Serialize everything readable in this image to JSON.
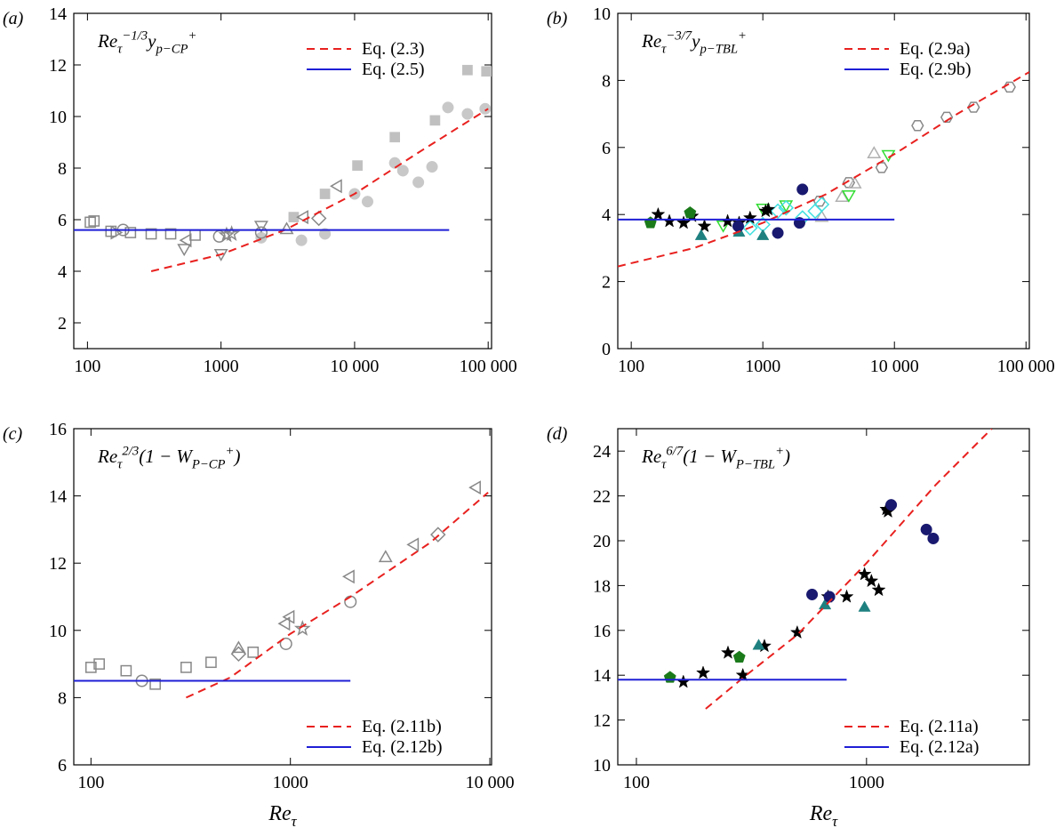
{
  "chart_data": [
    {
      "type": "scatter",
      "label": "(a)",
      "xscale": "log",
      "annotation": [
        {
          "text": "Re"
        },
        {
          "text": "τ",
          "shift": "sub"
        },
        {
          "text": "−1/3",
          "shift": "sup"
        },
        {
          "text": "y"
        },
        {
          "text": "p−CP",
          "shift": "sub"
        },
        {
          "text": "+",
          "shift": "sup"
        }
      ],
      "xlim": [
        79,
        106000
      ],
      "ylim": [
        1,
        14
      ],
      "xticks": [
        100,
        1000,
        {
          "value": 10000,
          "label": "10 000"
        },
        {
          "value": 100000,
          "label": "100 000"
        }
      ],
      "yticks": [
        2,
        4,
        6,
        8,
        10,
        12,
        14
      ],
      "legend": "upper right",
      "series": [
        {
          "marker": "circle",
          "filled": true,
          "color": "#c8c8c8",
          "x": [
            2000,
            4000,
            6000,
            10000,
            12500,
            20000,
            23000,
            30000,
            38000,
            50000,
            70000,
            95000
          ],
          "values": [
            5.3,
            5.2,
            5.45,
            7.0,
            6.7,
            8.2,
            7.9,
            7.45,
            8.05,
            10.35,
            10.1,
            10.3
          ]
        },
        {
          "marker": "square",
          "filled": true,
          "color": "#c0c0c0",
          "x": [
            3500,
            6000,
            10500,
            20000,
            40000,
            70000,
            97000
          ],
          "values": [
            6.1,
            7.0,
            8.1,
            9.2,
            9.85,
            11.8,
            11.75
          ]
        },
        {
          "marker": "square",
          "filled": false,
          "color": "#888888",
          "x": [
            105,
            112,
            150,
            210,
            300,
            420,
            640
          ],
          "values": [
            5.9,
            5.95,
            5.55,
            5.5,
            5.45,
            5.45,
            5.4
          ]
        },
        {
          "marker": "circle",
          "filled": false,
          "color": "#888888",
          "x": [
            185,
            970,
            2000
          ],
          "values": [
            5.6,
            5.35,
            5.5
          ]
        },
        {
          "marker": "triangle-right",
          "filled": false,
          "color": "#888888",
          "x": [
            160
          ],
          "values": [
            5.5
          ]
        },
        {
          "marker": "triangle-down",
          "filled": false,
          "color": "#888888",
          "x": [
            530,
            1000,
            2000
          ],
          "values": [
            4.9,
            4.7,
            5.8
          ]
        },
        {
          "marker": "triangle-left",
          "filled": false,
          "color": "#888888",
          "x": [
            560,
            4200,
            7500
          ],
          "values": [
            5.2,
            6.1,
            7.3
          ]
        },
        {
          "marker": "star",
          "filled": false,
          "color": "#888888",
          "x": [
            1100,
            1200
          ],
          "values": [
            5.4,
            5.45
          ]
        },
        {
          "marker": "triangle-up",
          "filled": false,
          "color": "#888888",
          "x": [
            3100
          ],
          "values": [
            5.6
          ]
        },
        {
          "marker": "diamond",
          "filled": false,
          "color": "#888888",
          "x": [
            5400
          ],
          "values": [
            6.05
          ]
        },
        {
          "name": "Eq. (2.3)",
          "color": "#e8211f",
          "dash": true,
          "x": [
            300,
            1000,
            3000,
            10000,
            30000,
            100000
          ],
          "values": [
            4.0,
            4.65,
            5.6,
            7.0,
            8.6,
            10.3
          ]
        },
        {
          "name": "Eq. (2.5)",
          "color": "#1f1fd6",
          "dash": false,
          "x": [
            79,
            51000
          ],
          "values": [
            5.6,
            5.6
          ]
        }
      ]
    },
    {
      "type": "scatter",
      "label": "(b)",
      "xscale": "log",
      "annotation": [
        {
          "text": "Re"
        },
        {
          "text": "τ",
          "shift": "sub"
        },
        {
          "text": "−3/7",
          "shift": "sup"
        },
        {
          "text": "y"
        },
        {
          "text": "p−TBL",
          "shift": "sub"
        },
        {
          "text": "+",
          "shift": "sup"
        }
      ],
      "xlim": [
        79,
        106000
      ],
      "ylim": [
        0,
        10
      ],
      "xticks": [
        100,
        1000,
        {
          "value": 10000,
          "label": "10 000"
        },
        {
          "value": 100000,
          "label": "100 000"
        }
      ],
      "yticks": [
        0,
        2,
        4,
        6,
        8,
        10
      ],
      "legend": "upper right",
      "series": [
        {
          "marker": "hexagon",
          "filled": false,
          "color": "#888888",
          "x": [
            2700,
            4500,
            8000,
            15000,
            25000,
            40000,
            75000
          ],
          "values": [
            4.4,
            4.95,
            5.4,
            6.65,
            6.9,
            7.2,
            7.8
          ]
        },
        {
          "marker": "triangle-up",
          "filled": false,
          "color": "#b0b0b0",
          "x": [
            2800,
            4000,
            5000,
            7000
          ],
          "values": [
            3.9,
            4.5,
            4.9,
            5.8
          ]
        },
        {
          "marker": "triangle-down",
          "filled": false,
          "color": "#33dd33",
          "x": [
            500,
            1000,
            1500,
            4500,
            9000
          ],
          "values": [
            3.7,
            4.2,
            4.3,
            4.6,
            5.8
          ]
        },
        {
          "marker": "diamond",
          "filled": false,
          "color": "#40e0e0",
          "x": [
            800,
            1000,
            1300,
            1500,
            2000,
            2500,
            2800
          ],
          "values": [
            3.6,
            3.7,
            4.1,
            4.2,
            3.9,
            4.1,
            4.3
          ]
        },
        {
          "marker": "star",
          "filled": true,
          "color": "#000000",
          "x": [
            160,
            195,
            250,
            290,
            360,
            540,
            660,
            800,
            1050,
            1100
          ],
          "values": [
            4.0,
            3.8,
            3.75,
            3.95,
            3.65,
            3.8,
            3.75,
            3.9,
            4.1,
            4.15
          ]
        },
        {
          "marker": "pentagon",
          "filled": true,
          "color": "#1a7a1a",
          "x": [
            140,
            280
          ],
          "values": [
            3.75,
            4.05
          ]
        },
        {
          "marker": "triangle-up",
          "filled": true,
          "color": "#1f8080",
          "x": [
            340,
            660,
            1000
          ],
          "values": [
            3.35,
            3.45,
            3.35
          ]
        },
        {
          "marker": "circle",
          "filled": true,
          "color": "#191970",
          "x": [
            650,
            1300,
            1900,
            2000
          ],
          "values": [
            3.65,
            3.45,
            3.75,
            4.75
          ]
        },
        {
          "name": "Eq. (2.9a)",
          "color": "#e8211f",
          "dash": true,
          "x": [
            79,
            300,
            1000,
            3000,
            10000,
            30000,
            106000
          ],
          "values": [
            2.45,
            3.0,
            3.75,
            4.6,
            5.8,
            7.0,
            8.25
          ]
        },
        {
          "name": "Eq. (2.9b)",
          "color": "#1f1fd6",
          "dash": false,
          "x": [
            79,
            10000
          ],
          "values": [
            3.85,
            3.85
          ]
        }
      ]
    },
    {
      "type": "scatter",
      "label": "(c)",
      "xscale": "log",
      "annotation": [
        {
          "text": "Re"
        },
        {
          "text": "τ",
          "shift": "sub"
        },
        {
          "text": "2/3",
          "shift": "sup"
        },
        {
          "text": "(1 − W"
        },
        {
          "text": "P−CP",
          "shift": "sub"
        },
        {
          "text": "+",
          "shift": "sup"
        },
        {
          "text": ")"
        }
      ],
      "xlabel": [
        {
          "text": "Re"
        },
        {
          "text": "τ",
          "shift": "sub"
        }
      ],
      "xlim": [
        82,
        10200
      ],
      "ylim": [
        6,
        16
      ],
      "xticks": [
        100,
        1000,
        {
          "value": 10000,
          "label": "10 000"
        }
      ],
      "yticks": [
        6,
        8,
        10,
        12,
        14,
        16
      ],
      "legend": "lower right",
      "series": [
        {
          "marker": "square",
          "filled": false,
          "color": "#888888",
          "x": [
            100,
            110,
            150,
            210,
            300,
            400,
            650
          ],
          "values": [
            8.9,
            9.0,
            8.8,
            8.4,
            8.9,
            9.05,
            9.35
          ]
        },
        {
          "marker": "circle",
          "filled": false,
          "color": "#888888",
          "x": [
            180,
            950,
            2000
          ],
          "values": [
            8.5,
            9.6,
            10.85
          ]
        },
        {
          "marker": "triangle-up",
          "filled": false,
          "color": "#888888",
          "x": [
            550,
            3000
          ],
          "values": [
            9.45,
            12.15
          ]
        },
        {
          "marker": "diamond",
          "filled": false,
          "color": "#888888",
          "x": [
            550,
            5500
          ],
          "values": [
            9.3,
            12.85
          ]
        },
        {
          "marker": "triangle-left",
          "filled": false,
          "color": "#888888",
          "x": [
            950,
            1000,
            2000,
            4200,
            8600
          ],
          "values": [
            10.2,
            10.4,
            11.6,
            12.55,
            14.25
          ]
        },
        {
          "marker": "star",
          "filled": false,
          "color": "#888888",
          "x": [
            1150
          ],
          "values": [
            10.05
          ]
        },
        {
          "name": "Eq. (2.11b)",
          "color": "#e8211f",
          "dash": true,
          "x": [
            300,
            500,
            1000,
            2000,
            5000,
            9800
          ],
          "values": [
            8.0,
            8.6,
            9.9,
            11.0,
            12.6,
            14.1
          ]
        },
        {
          "name": "Eq. (2.12b)",
          "color": "#1f1fd6",
          "dash": false,
          "x": [
            82,
            2000
          ],
          "values": [
            8.5,
            8.5
          ]
        }
      ]
    },
    {
      "type": "scatter",
      "label": "(d)",
      "xscale": "log",
      "annotation": [
        {
          "text": "Re"
        },
        {
          "text": "τ",
          "shift": "sub"
        },
        {
          "text": "6/7",
          "shift": "sup"
        },
        {
          "text": "(1 − W"
        },
        {
          "text": "P−TBL",
          "shift": "sub"
        },
        {
          "text": "+",
          "shift": "sup"
        },
        {
          "text": ")"
        }
      ],
      "xlabel": [
        {
          "text": "Re"
        },
        {
          "text": "τ",
          "shift": "sub"
        }
      ],
      "xlim": [
        83,
        5100
      ],
      "ylim": [
        10,
        25
      ],
      "xticks": [
        100,
        1000
      ],
      "yticks": [
        10,
        12,
        14,
        16,
        18,
        20,
        22,
        24
      ],
      "legend": "lower right",
      "series": [
        {
          "marker": "star",
          "filled": true,
          "color": "#000000",
          "x": [
            160,
            195,
            250,
            290,
            360,
            500,
            680,
            820,
            980,
            1050,
            1130,
            1240,
            1220
          ],
          "values": [
            13.7,
            14.1,
            15.0,
            14.0,
            15.3,
            15.9,
            17.5,
            17.5,
            18.5,
            18.2,
            17.8,
            21.3,
            21.4
          ]
        },
        {
          "marker": "pentagon",
          "filled": true,
          "color": "#1a7a1a",
          "x": [
            140,
            280
          ],
          "values": [
            13.9,
            14.8
          ]
        },
        {
          "marker": "triangle-up",
          "filled": true,
          "color": "#1f8080",
          "x": [
            340,
            660,
            980
          ],
          "values": [
            15.3,
            17.1,
            17.0
          ]
        },
        {
          "marker": "circle",
          "filled": true,
          "color": "#191970",
          "x": [
            580,
            690,
            1280,
            1820,
            1950
          ],
          "values": [
            17.6,
            17.5,
            21.6,
            20.5,
            20.1
          ]
        },
        {
          "name": "Eq. (2.11a)",
          "color": "#e8211f",
          "dash": true,
          "x": [
            200,
            300,
            500,
            1000,
            2000,
            3500
          ],
          "values": [
            12.5,
            14.0,
            15.8,
            19.0,
            22.5,
            25.0
          ]
        },
        {
          "name": "Eq. (2.12a)",
          "color": "#1f1fd6",
          "dash": false,
          "x": [
            83,
            820
          ],
          "values": [
            13.8,
            13.8
          ]
        }
      ]
    }
  ]
}
